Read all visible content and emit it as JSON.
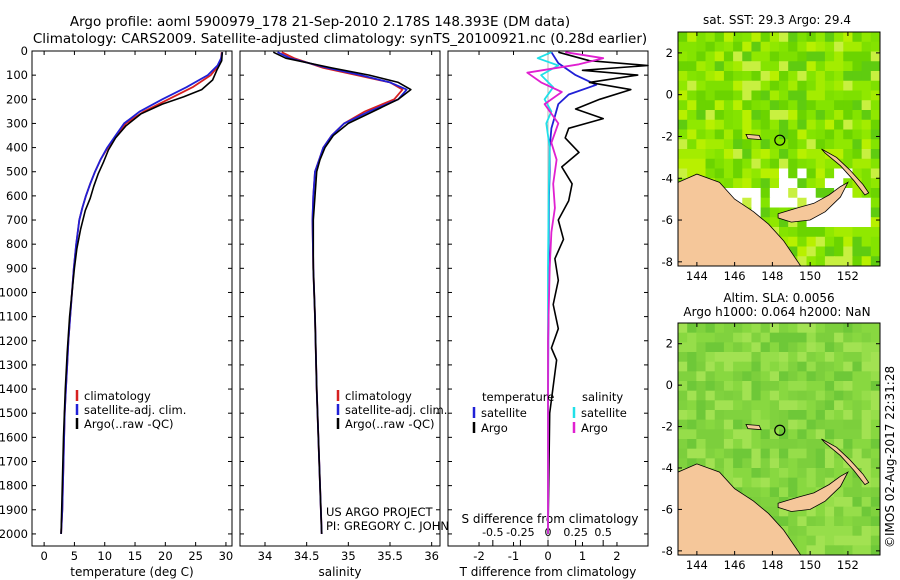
{
  "header": {
    "line1": "Argo profile: aoml 5900979_178 21-Sep-2010 2.178S 148.393E (DM data)",
    "line2": "Climatology: CARS2009. Satellite-adjusted climatology: synTS_20100921.nc (0.28d earlier)"
  },
  "colors": {
    "climatology": "#d62020",
    "satellite": "#2020d6",
    "argo": "#000000",
    "sal_satellite": "#20e0e8",
    "sal_argo": "#e020d0",
    "land": "#f5c79a"
  },
  "chart_data": [
    {
      "type": "line",
      "panel": "temperature",
      "xlabel": "temperature (deg C)",
      "xlim": [
        -2,
        31
      ],
      "xticks": [
        "0",
        "5",
        "10",
        "15",
        "20",
        "25",
        "30"
      ],
      "xtick_values": [
        0,
        5,
        10,
        15,
        20,
        25,
        30
      ],
      "ylim": [
        2050,
        0
      ],
      "yticks": [
        "0",
        "100",
        "200",
        "300",
        "400",
        "500",
        "600",
        "700",
        "800",
        "900",
        "1000",
        "1100",
        "1200",
        "1300",
        "1400",
        "1500",
        "1600",
        "1700",
        "1800",
        "1900",
        "2000"
      ],
      "ytick_values": [
        0,
        100,
        200,
        300,
        400,
        500,
        600,
        700,
        800,
        900,
        1000,
        1100,
        1200,
        1300,
        1400,
        1500,
        1600,
        1700,
        1800,
        1900,
        2000
      ],
      "legend": [
        "climatology",
        "satellite-adj. clim.",
        "Argo(..raw -QC)"
      ],
      "series": [
        {
          "name": "climatology",
          "color_key": "climatology",
          "x": [
            29.3,
            29.2,
            28.8,
            27.5,
            24.5,
            20.5,
            16.5,
            13.5,
            12.0,
            10.5,
            9.3,
            8.4,
            7.6,
            6.9,
            6.3,
            5.8,
            5.3,
            4.9,
            4.6,
            4.3,
            4.0,
            3.8,
            3.6,
            3.4,
            3.2,
            3.0,
            2.8
          ],
          "y": [
            5,
            30,
            60,
            100,
            150,
            200,
            250,
            300,
            350,
            400,
            450,
            500,
            550,
            600,
            650,
            700,
            800,
            900,
            1000,
            1100,
            1200,
            1300,
            1400,
            1500,
            1700,
            1900,
            2000
          ]
        },
        {
          "name": "satellite-adj. clim.",
          "color_key": "satellite",
          "x": [
            29.4,
            29.2,
            28.6,
            27.0,
            23.5,
            19.5,
            15.8,
            13.2,
            11.8,
            10.4,
            9.3,
            8.4,
            7.6,
            6.9,
            6.3,
            5.8,
            5.3,
            4.9,
            4.6,
            4.3,
            4.0,
            3.8,
            3.6,
            3.4,
            3.2,
            3.0,
            2.8
          ],
          "y": [
            5,
            30,
            60,
            100,
            150,
            200,
            250,
            300,
            350,
            400,
            450,
            500,
            550,
            600,
            650,
            700,
            800,
            900,
            1000,
            1100,
            1200,
            1300,
            1400,
            1500,
            1700,
            1900,
            2000
          ]
        },
        {
          "name": "Argo(..raw -QC)",
          "color_key": "argo",
          "x": [
            29.4,
            29.3,
            28.5,
            27.8,
            26.0,
            23.0,
            19.5,
            16.0,
            13.5,
            11.8,
            10.6,
            9.8,
            8.9,
            8.2,
            7.6,
            6.8,
            6.0,
            5.4,
            5.0,
            4.6,
            4.2,
            3.8,
            3.5,
            3.2,
            3.0,
            2.8
          ],
          "y": [
            5,
            40,
            80,
            120,
            160,
            190,
            220,
            260,
            310,
            360,
            410,
            460,
            510,
            560,
            610,
            660,
            740,
            820,
            900,
            1000,
            1100,
            1250,
            1400,
            1600,
            1800,
            2000
          ]
        }
      ]
    },
    {
      "type": "line",
      "panel": "salinity",
      "xlabel": "salinity",
      "xlim": [
        33.7,
        36.1
      ],
      "xticks": [
        "34",
        "34.5",
        "35",
        "35.5",
        "36"
      ],
      "xtick_values": [
        34,
        34.5,
        35,
        35.5,
        36
      ],
      "ylim": [
        2050,
        0
      ],
      "legend": [
        "climatology",
        "satellite-adj. clim.",
        "Argo(..raw -QC)"
      ],
      "annotation": [
        "US ARGO PROJECT",
        "PI: GREGORY C. JOHNSON"
      ],
      "series": [
        {
          "name": "climatology",
          "color_key": "climatology",
          "x": [
            34.2,
            34.35,
            34.7,
            35.1,
            35.5,
            35.65,
            35.55,
            35.2,
            34.95,
            34.8,
            34.7,
            34.65,
            34.6,
            34.58,
            34.57,
            34.58,
            34.6,
            34.62,
            34.65,
            34.68
          ],
          "y": [
            5,
            30,
            70,
            100,
            130,
            160,
            200,
            250,
            300,
            350,
            400,
            450,
            500,
            600,
            700,
            900,
            1100,
            1400,
            1700,
            2000
          ]
        },
        {
          "name": "satellite-adj. clim.",
          "color_key": "satellite",
          "x": [
            34.15,
            34.3,
            34.75,
            35.15,
            35.5,
            35.7,
            35.6,
            35.25,
            34.95,
            34.8,
            34.7,
            34.65,
            34.6,
            34.58,
            34.57,
            34.58,
            34.6,
            34.62,
            34.65,
            34.68
          ],
          "y": [
            5,
            30,
            70,
            100,
            130,
            160,
            200,
            250,
            300,
            350,
            400,
            450,
            500,
            600,
            700,
            900,
            1100,
            1400,
            1700,
            2000
          ]
        },
        {
          "name": "Argo(..raw -QC)",
          "color_key": "argo",
          "x": [
            34.1,
            34.25,
            34.8,
            35.25,
            35.6,
            35.75,
            35.6,
            35.3,
            35.0,
            34.82,
            34.72,
            34.66,
            34.62,
            34.6,
            34.58,
            34.58,
            34.6,
            34.62,
            34.65,
            34.68
          ],
          "y": [
            5,
            30,
            70,
            100,
            130,
            160,
            200,
            250,
            300,
            350,
            400,
            450,
            500,
            600,
            700,
            900,
            1100,
            1400,
            1700,
            2000
          ]
        }
      ]
    },
    {
      "type": "line",
      "panel": "difference",
      "xlabel_top": "S difference from climatology",
      "xlabel": "T difference from climatology",
      "xlim": [
        -2.9,
        2.9
      ],
      "xticks": [
        "-2",
        "-1",
        "0",
        "1",
        "2"
      ],
      "xtick_values": [
        -2,
        -1,
        0,
        1,
        2
      ],
      "s_xticks": [
        "-0.5",
        "-0.25",
        "0",
        "0.25",
        "0.5"
      ],
      "s_xtick_values": [
        -1.6,
        -0.8,
        0,
        0.8,
        1.6
      ],
      "ylim": [
        2050,
        0
      ],
      "legend_groups": [
        {
          "title": "temperature",
          "items": [
            "satellite",
            "Argo"
          ]
        },
        {
          "title": "salinity",
          "items": [
            "satellite",
            "Argo"
          ]
        }
      ],
      "series": [
        {
          "name": "temperature satellite",
          "color_key": "satellite",
          "x": [
            0.1,
            0.3,
            0.8,
            1.4,
            0.6,
            0.3,
            0.2,
            0.1,
            0.05,
            0.05,
            0.03,
            0.02,
            0.02,
            0.01,
            0.0,
            0.0,
            0.0
          ],
          "y": [
            5,
            50,
            100,
            140,
            180,
            220,
            270,
            320,
            400,
            500,
            600,
            800,
            1000,
            1200,
            1500,
            1800,
            2000
          ]
        },
        {
          "name": "temperature Argo",
          "color_key": "argo",
          "x": [
            0.3,
            1.2,
            2.9,
            1.0,
            2.6,
            1.2,
            2.4,
            1.5,
            0.8,
            1.6,
            0.6,
            0.5,
            0.9,
            0.4,
            0.7,
            0.6,
            0.3,
            0.45,
            0.2,
            0.3,
            0.15,
            0.3,
            0.1,
            0.25,
            0.05,
            0.0
          ],
          "y": [
            5,
            40,
            60,
            80,
            100,
            130,
            160,
            200,
            240,
            280,
            320,
            360,
            420,
            480,
            550,
            620,
            700,
            780,
            860,
            950,
            1050,
            1150,
            1230,
            1280,
            1500,
            2000
          ]
        },
        {
          "name": "salinity satellite",
          "color_key": "sal_satellite",
          "x": [
            0.1,
            -0.3,
            0.3,
            -0.2,
            0.15,
            -0.1,
            0.1,
            -0.05,
            0.05,
            0.02,
            0.0,
            0.0,
            0.0
          ],
          "y": [
            5,
            30,
            60,
            100,
            150,
            200,
            250,
            300,
            400,
            600,
            900,
            1400,
            2000
          ]
        },
        {
          "name": "salinity Argo",
          "color_key": "sal_argo",
          "x": [
            0.5,
            1.6,
            0.9,
            -0.6,
            -0.2,
            0.4,
            -0.1,
            0.3,
            0.1,
            0.25,
            0.15,
            0.2,
            0.1,
            0.05,
            0.0,
            0.0
          ],
          "y": [
            5,
            30,
            55,
            90,
            130,
            170,
            220,
            300,
            380,
            450,
            550,
            650,
            750,
            900,
            1200,
            2000
          ]
        }
      ]
    },
    {
      "type": "heatmap",
      "panel": "sst_map",
      "title": "sat. SST: 29.3  Argo: 29.4",
      "xlim": [
        143,
        153.7
      ],
      "ylim": [
        -8.2,
        3
      ],
      "xticks": [
        "144",
        "146",
        "148",
        "150",
        "152"
      ],
      "xtick_values": [
        144,
        146,
        148,
        150,
        152
      ],
      "yticks": [
        "2",
        "0",
        "-2",
        "-4",
        "-6",
        "-8"
      ],
      "ytick_values": [
        2,
        0,
        -2,
        -4,
        -6,
        -8
      ],
      "float_position": {
        "lon": 148.393,
        "lat": -2.178
      }
    },
    {
      "type": "heatmap",
      "panel": "sla_map",
      "title": "Altim. SLA: 0.0056",
      "subtitle": "Argo h1000: 0.064  h2000: NaN",
      "xlim": [
        143,
        153.7
      ],
      "ylim": [
        -8.2,
        3
      ],
      "xticks": [
        "144",
        "146",
        "148",
        "150",
        "152"
      ],
      "xtick_values": [
        144,
        146,
        148,
        150,
        152
      ],
      "yticks": [
        "2",
        "0",
        "-2",
        "-4",
        "-6",
        "-8"
      ],
      "ytick_values": [
        2,
        0,
        -2,
        -4,
        -6,
        -8
      ],
      "float_position": {
        "lon": 148.393,
        "lat": -2.178
      }
    }
  ],
  "footer": {
    "credit": "©IMOS 02-Aug-2017 22:31:28"
  }
}
